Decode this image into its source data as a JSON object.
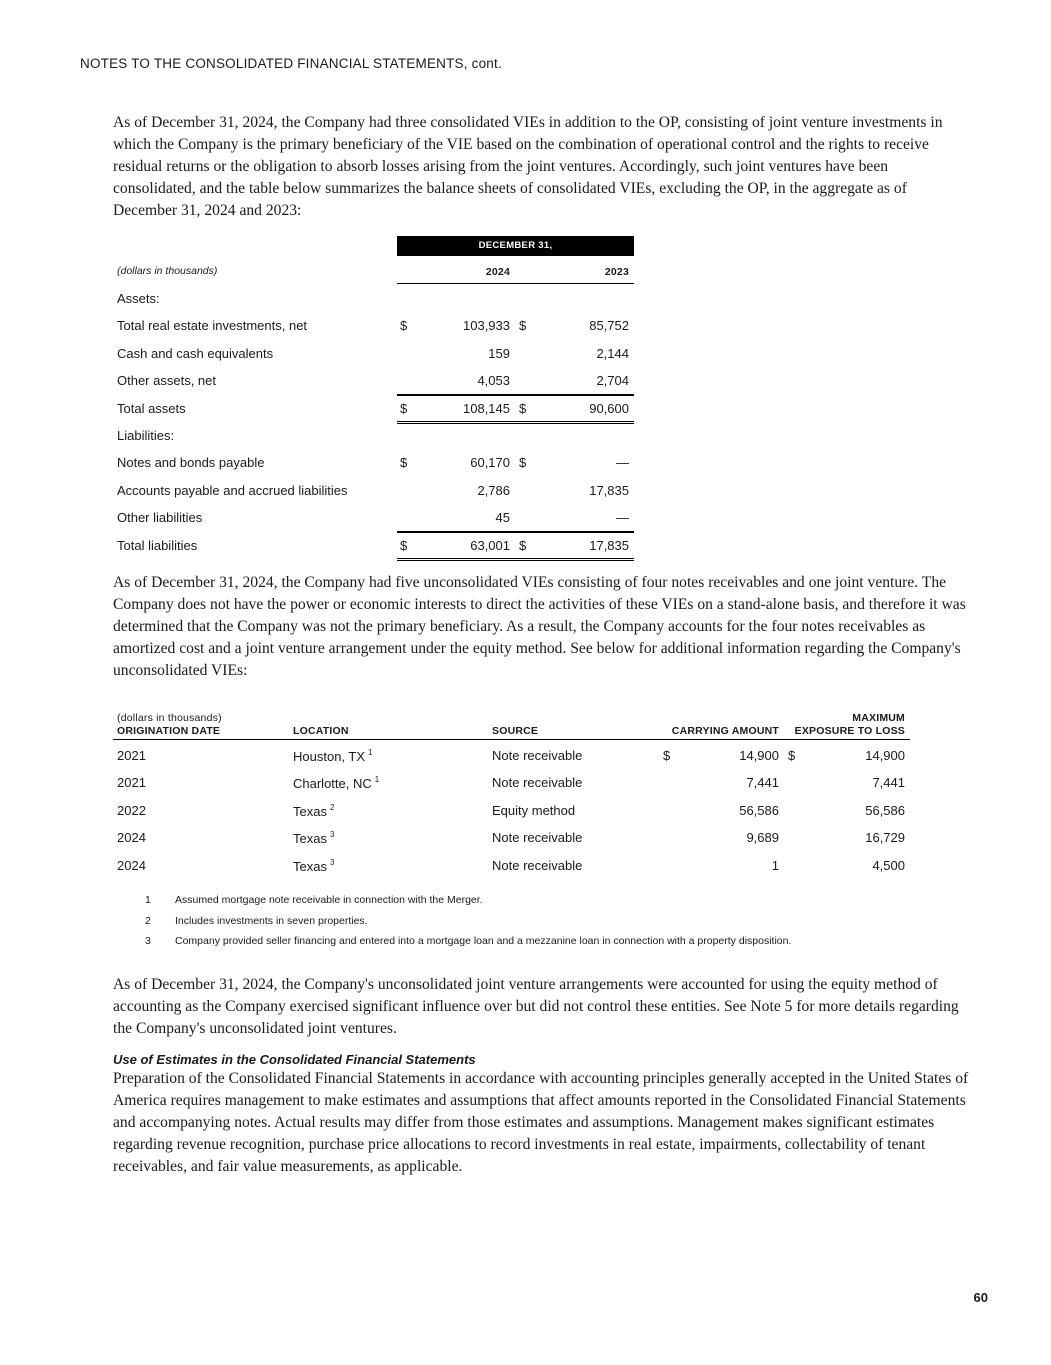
{
  "header": "NOTES TO THE CONSOLIDATED FINANCIAL STATEMENTS, cont.",
  "paragraphs": {
    "p1": "As of December 31, 2024, the Company had three consolidated VIEs in addition to the OP, consisting of joint venture investments in which the Company is the primary beneficiary of the VIE based on the combination of operational control and the rights to receive residual returns or the obligation to absorb losses arising from the joint ventures. Accordingly, such joint ventures have been consolidated, and the table below summarizes the balance sheets of consolidated VIEs, excluding the OP, in the aggregate as of December 31, 2024 and 2023:",
    "p2": "As of December 31, 2024, the Company had five unconsolidated VIEs consisting of four notes receivables and one joint venture. The Company does not have the power or economic interests to direct the activities of these VIEs on a stand-alone basis, and therefore it was determined that the Company was not the primary beneficiary. As a result, the Company accounts for the four notes receivables as amortized cost and a joint venture arrangement under the equity method.  See below for additional information regarding the Company's unconsolidated VIEs:",
    "p3": "As of December 31, 2024, the Company's unconsolidated joint venture arrangements were accounted for using the equity method of accounting as the Company exercised significant influence over but did not control these entities. See Note 5 for more details regarding the Company's unconsolidated joint ventures.",
    "estimates_heading": "Use of Estimates in the Consolidated Financial Statements",
    "p4": "Preparation of the Consolidated Financial Statements in accordance with accounting principles generally accepted in the United States of America requires management to make estimates and assumptions that affect amounts reported in the Consolidated Financial Statements and accompanying notes. Actual results may differ from those estimates and assumptions.  Management makes significant estimates regarding revenue recognition, purchase price allocations to record investments in real estate, impairments, collectability of tenant receivables, and fair value measurements, as applicable."
  },
  "table1": {
    "group_header": "DECEMBER 31,",
    "units": "(dollars in thousands)",
    "col_2024": "2024",
    "col_2023": "2023",
    "rows": [
      {
        "label": "Assets:",
        "d1": "",
        "v1": "",
        "d2": "",
        "v2": "",
        "rule": ""
      },
      {
        "label": "Total real estate investments, net",
        "d1": "$",
        "v1": "103,933",
        "d2": "$",
        "v2": "85,752",
        "rule": ""
      },
      {
        "label": "Cash and cash equivalents",
        "d1": "",
        "v1": "159",
        "d2": "",
        "v2": "2,144",
        "rule": ""
      },
      {
        "label": "Other assets, net",
        "d1": "",
        "v1": "4,053",
        "d2": "",
        "v2": "2,704",
        "rule": "single"
      },
      {
        "label": "Total assets",
        "d1": "$",
        "v1": "108,145",
        "d2": "$",
        "v2": "90,600",
        "rule": "double"
      },
      {
        "label": "Liabilities:",
        "d1": "",
        "v1": "",
        "d2": "",
        "v2": "",
        "rule": ""
      },
      {
        "label": "Notes and bonds payable",
        "d1": "$",
        "v1": "60,170",
        "d2": "$",
        "v2": "—",
        "rule": ""
      },
      {
        "label": "Accounts payable and accrued liabilities",
        "d1": "",
        "v1": "2,786",
        "d2": "",
        "v2": "17,835",
        "rule": ""
      },
      {
        "label": "Other liabilities",
        "d1": "",
        "v1": "45",
        "d2": "",
        "v2": "—",
        "rule": "single"
      },
      {
        "label": "Total liabilities",
        "d1": "$",
        "v1": "63,001",
        "d2": "$",
        "v2": "17,835",
        "rule": "double"
      }
    ]
  },
  "table2": {
    "units": "(dollars in thousands)",
    "headers": {
      "date": "ORIGINATION DATE",
      "location": "LOCATION",
      "source": "SOURCE",
      "carrying": "CARRYING AMOUNT",
      "max_line1": "MAXIMUM",
      "max_line2": "EXPOSURE TO LOSS"
    },
    "rows": [
      {
        "date": "2021",
        "location": "Houston, TX",
        "fn": "1",
        "source": "Note receivable",
        "d1": "$",
        "carrying": "14,900",
        "d2": "$",
        "max": "14,900"
      },
      {
        "date": "2021",
        "location": "Charlotte, NC",
        "fn": "1",
        "source": "Note receivable",
        "d1": "",
        "carrying": "7,441",
        "d2": "",
        "max": "7,441"
      },
      {
        "date": "2022",
        "location": "Texas",
        "fn": "2",
        "source": "Equity method",
        "d1": "",
        "carrying": "56,586",
        "d2": "",
        "max": "56,586"
      },
      {
        "date": "2024",
        "location": "Texas",
        "fn": "3",
        "source": "Note receivable",
        "d1": "",
        "carrying": "9,689",
        "d2": "",
        "max": "16,729"
      },
      {
        "date": "2024",
        "location": "Texas",
        "fn": "3",
        "source": "Note receivable",
        "d1": "",
        "carrying": "1",
        "d2": "",
        "max": "4,500"
      }
    ],
    "footnotes": [
      {
        "num": "1",
        "text": "Assumed mortgage note receivable in connection with the Merger."
      },
      {
        "num": "2",
        "text": "Includes investments in seven properties."
      },
      {
        "num": "3",
        "text": "Company provided seller financing and entered into a mortgage loan and a mezzanine loan in connection with a property disposition."
      }
    ]
  },
  "page_number": "60"
}
